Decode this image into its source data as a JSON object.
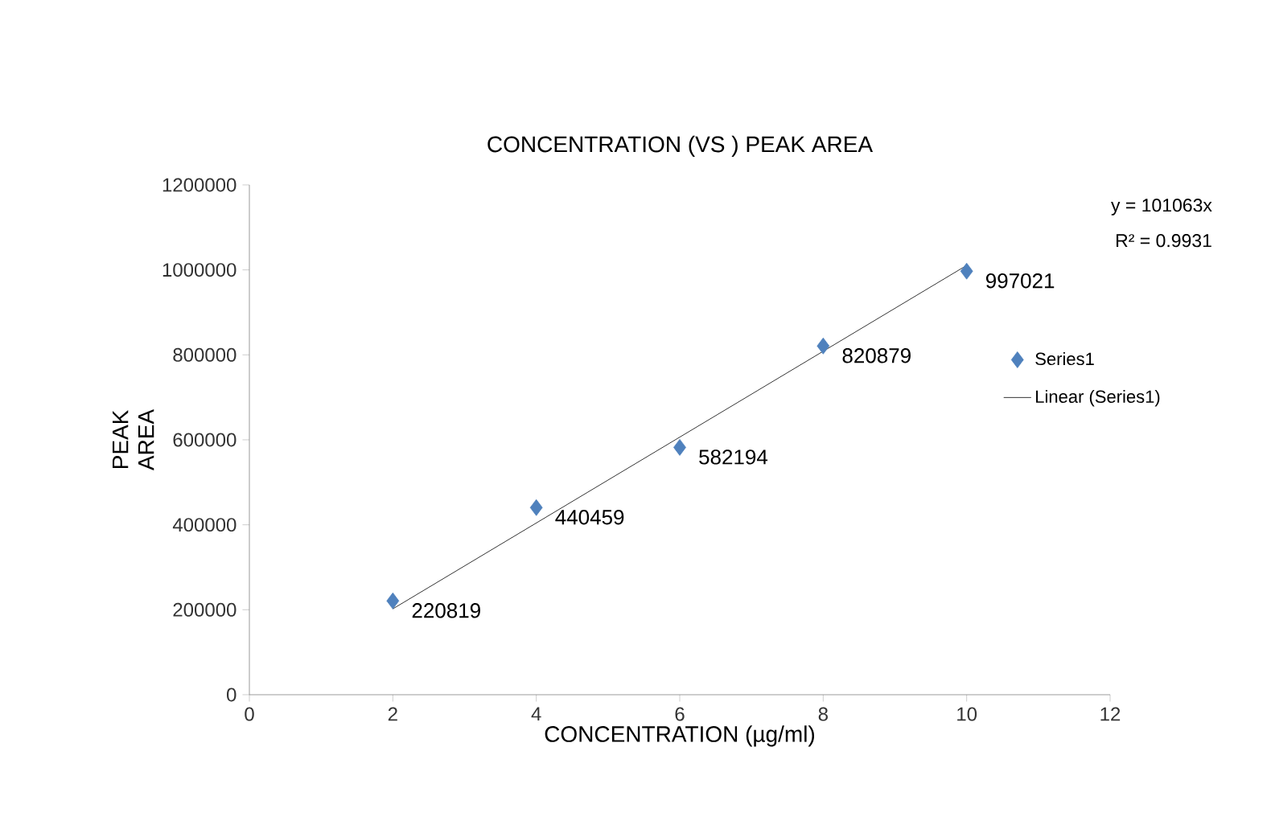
{
  "chart_data": {
    "type": "scatter",
    "title": "CONCENTRATION (VS ) PEAK AREA",
    "xlabel": "CONCENTRATION (µg/ml)",
    "ylabel": "PEAK AREA",
    "annotations": [
      "y = 101063x",
      "R² = 0.9931"
    ],
    "series": [
      {
        "name": "Series1",
        "type": "scatter",
        "color": "#4f81bd",
        "marker": "diamond",
        "x": [
          2,
          4,
          6,
          8,
          10
        ],
        "values": [
          220819,
          440459,
          582194,
          820879,
          997021
        ],
        "value_labels": [
          "220819",
          "440459",
          "582194",
          "820879",
          "997021"
        ]
      },
      {
        "name": "Linear (Series1)",
        "type": "line",
        "color": "#000000",
        "line_style": "solid",
        "marker": "none",
        "x": [
          2,
          10
        ],
        "values": [
          202100,
          1010600
        ]
      }
    ],
    "xlim": [
      0,
      12
    ],
    "xticks": [
      0,
      2,
      4,
      6,
      8,
      10,
      12
    ],
    "ylim": [
      0,
      1200000
    ],
    "yticks": [
      0,
      200000,
      400000,
      600000,
      800000,
      1000000,
      1200000
    ],
    "grid": false,
    "legend": "right"
  }
}
